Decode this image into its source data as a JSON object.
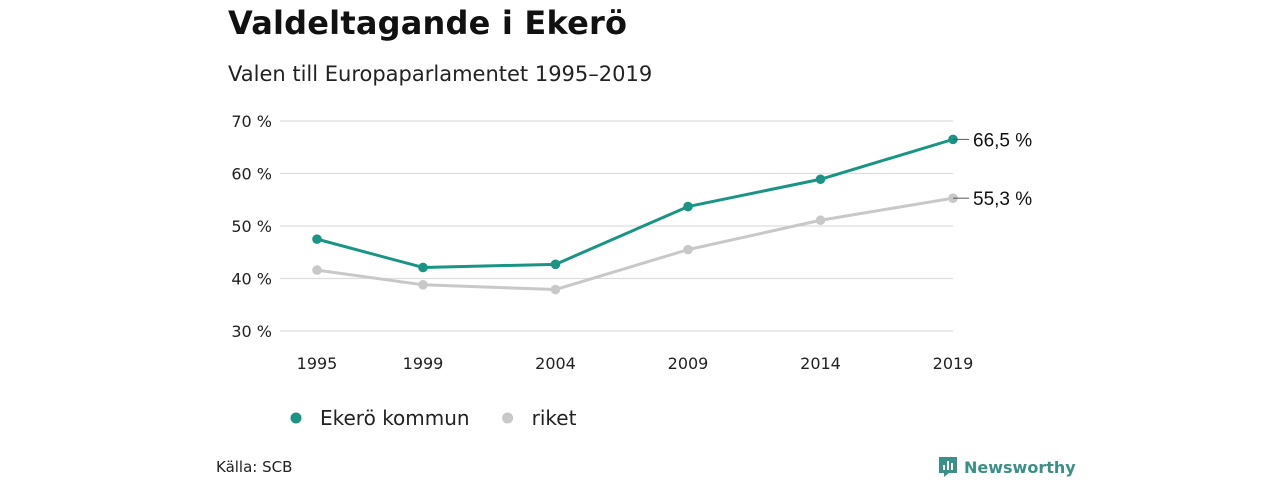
{
  "header": {
    "title": "Valdeltagande i Ekerö",
    "subtitle": "Valen till Europaparlamentet 1995–2019"
  },
  "chart_data": {
    "type": "line",
    "title": "Valdeltagande i Ekerö",
    "subtitle": "Valen till Europaparlamentet 1995–2019",
    "x": [
      1995,
      1999,
      2004,
      2009,
      2014,
      2019
    ],
    "x_tick_labels": [
      "1995",
      "1999",
      "2004",
      "2009",
      "2014",
      "2019"
    ],
    "y_ticks": [
      30,
      40,
      50,
      60,
      70
    ],
    "y_tick_labels": [
      "30 %",
      "40 %",
      "50 %",
      "60 %",
      "70 %"
    ],
    "ylim": [
      30,
      70
    ],
    "grid": true,
    "legend_position": "bottom-left",
    "series": [
      {
        "name": "Ekerö kommun",
        "color": "#1a9484",
        "values": [
          47.5,
          42.1,
          42.7,
          53.7,
          58.9,
          66.5
        ],
        "end_label": "66,5 %"
      },
      {
        "name": "riket",
        "color": "#c8c8c8",
        "values": [
          41.6,
          38.8,
          37.9,
          45.5,
          51.1,
          55.3
        ],
        "end_label": "55,3 %"
      }
    ]
  },
  "footer": {
    "source": "Källa: SCB",
    "brand": "Newsworthy",
    "brand_color": "#3a8f86",
    "brand_icon": "bar-chart-icon"
  }
}
